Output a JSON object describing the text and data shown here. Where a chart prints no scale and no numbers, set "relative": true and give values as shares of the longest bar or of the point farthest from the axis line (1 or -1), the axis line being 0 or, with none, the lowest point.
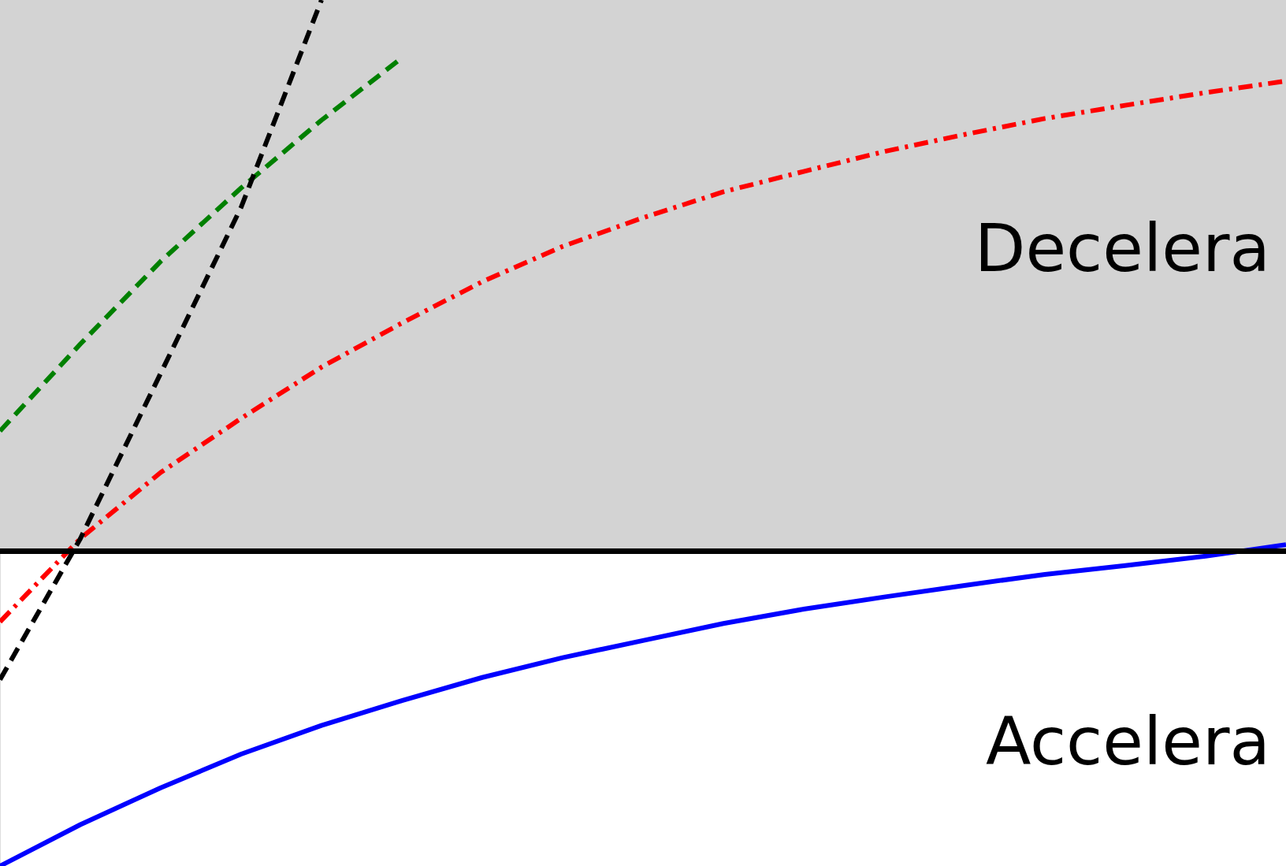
{
  "chart_data": {
    "type": "line",
    "relative": true,
    "categories": [
      null,
      null,
      null,
      null,
      null,
      null,
      null,
      null,
      null,
      null,
      null,
      null,
      null,
      null,
      null,
      null,
      null
    ],
    "series": [
      {
        "color": "#0000ff",
        "line_style": "solid",
        "values": [
          -0.571,
          -0.496,
          -0.429,
          -0.368,
          -0.316,
          -0.271,
          -0.229,
          -0.193,
          -0.162,
          -0.131,
          -0.105,
          -0.083,
          -0.062,
          -0.042,
          -0.026,
          -0.009,
          0.012
        ]
      },
      {
        "color": "#ff0000",
        "line_style": "dashdot",
        "values": [
          -0.128,
          0.023,
          0.143,
          0.241,
          0.334,
          0.414,
          0.489,
          0.553,
          0.605,
          0.652,
          0.689,
          0.725,
          0.756,
          0.785,
          0.809,
          0.832,
          0.853
        ]
      },
      {
        "color": "#008000",
        "line_style": "dashed",
        "values": [
          0.218,
          0.376,
          0.526,
          0.659,
          0.782,
          0.895,
          null,
          null,
          null,
          null,
          null,
          null,
          null,
          null,
          null,
          null,
          null
        ]
      },
      {
        "color": "#000000",
        "line_style": "dashed",
        "values": [
          -0.233,
          0.023,
          0.323,
          0.624,
          1,
          null,
          null,
          null,
          null,
          null,
          null,
          null,
          null,
          null,
          null,
          null,
          null
        ]
      }
    ],
    "bands": [
      {
        "axis": "y",
        "from": 0,
        "to": 1,
        "color": "#d3d3d3"
      }
    ],
    "ref_lines": [
      {
        "axis": "y",
        "value": 0,
        "color": "#000000"
      }
    ],
    "annotations": [
      "Decelera",
      "Accelera"
    ],
    "marker": "none"
  }
}
